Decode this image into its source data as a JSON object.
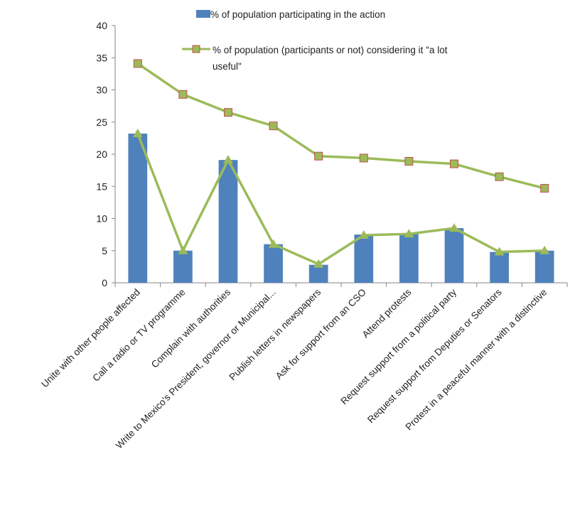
{
  "chart_data": {
    "type": "bar",
    "categories": [
      "Unite with other people affected",
      "Call a radio or TV programme",
      "Complain with authorities",
      "Write to Mexico's President, governor or Municipal...",
      "Publish letters in newspapers",
      "Ask for support from an CSO",
      "Attend protests",
      "Request support from a political party",
      "Request support from Deputies or Senators",
      "Protest in a peaceful manner with a distinctive"
    ],
    "series": [
      {
        "name": "% of population participating in the action",
        "kind": "bar",
        "color": "#4f81bd",
        "values": [
          23.2,
          5.0,
          19.1,
          6.0,
          2.8,
          7.5,
          7.6,
          8.5,
          4.8,
          5.0
        ]
      },
      {
        "name": "% of population (participants or not) considering it \"a lot useful\"",
        "kind": "line",
        "marker": "square",
        "color": "#9bbb59",
        "marker_edge": "#c0504d",
        "values": [
          34.1,
          29.3,
          26.5,
          24.4,
          19.7,
          19.4,
          18.9,
          18.5,
          16.5,
          14.7
        ]
      },
      {
        "name": "",
        "kind": "line",
        "marker": "triangle",
        "color": "#9bbb59",
        "values": [
          23.2,
          5.0,
          19.1,
          6.0,
          2.9,
          7.4,
          7.6,
          8.5,
          4.8,
          5.0
        ]
      }
    ],
    "ylim": [
      0,
      40
    ],
    "yticks": [
      "0",
      "5",
      "10",
      "15",
      "20",
      "25",
      "30",
      "35",
      "40"
    ],
    "legend": {
      "placement": "top",
      "entry_1": "% of population participating in the action",
      "entry_2_line_1": "% of population (participants or not) considering it \"a lot",
      "entry_2_line_2": "useful\""
    },
    "title": "",
    "xlabel": "",
    "ylabel": "",
    "grid": false
  }
}
